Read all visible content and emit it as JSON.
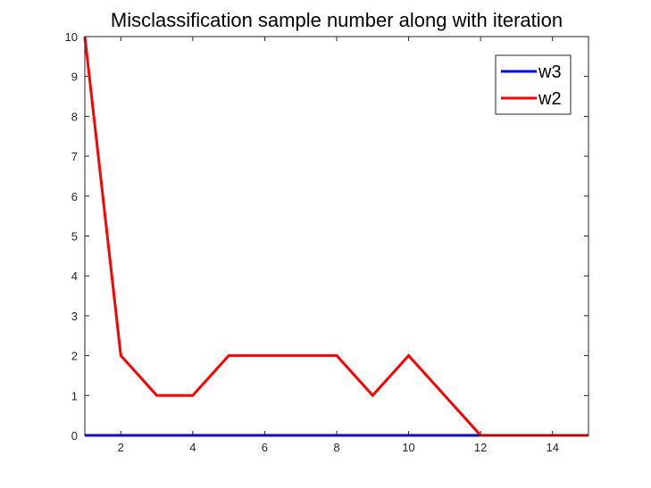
{
  "chart_data": {
    "type": "line",
    "title": "Misclassification sample number along with iteration",
    "xlabel": "",
    "ylabel": "",
    "xlim": [
      1,
      15
    ],
    "ylim": [
      0,
      10
    ],
    "xticks": [
      2,
      4,
      6,
      8,
      10,
      12,
      14
    ],
    "yticks": [
      0,
      1,
      2,
      3,
      4,
      5,
      6,
      7,
      8,
      9,
      10
    ],
    "grid": false,
    "legend_position": "top-right",
    "x": [
      1,
      2,
      3,
      4,
      5,
      6,
      7,
      8,
      9,
      10,
      11,
      12,
      13,
      14,
      15
    ],
    "series": [
      {
        "name": "w3",
        "color": "#0000ff",
        "values": [
          0,
          0,
          0,
          0,
          0,
          0,
          0,
          0,
          0,
          0,
          0,
          0,
          0,
          0,
          0
        ]
      },
      {
        "name": "w2",
        "color": "#ff0000",
        "values": [
          10,
          2,
          1,
          1,
          2,
          2,
          2,
          2,
          1,
          2,
          1,
          0,
          0,
          0,
          0
        ]
      }
    ]
  }
}
